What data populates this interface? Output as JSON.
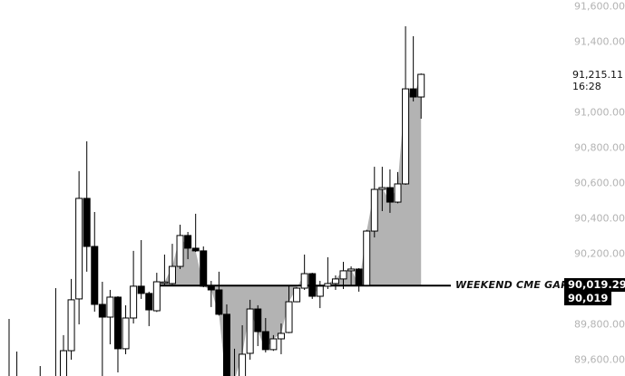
{
  "chart_data": {
    "type": "candlestick",
    "title": "",
    "xlabel": "",
    "ylabel": "",
    "ylim": [
      89380,
      91640
    ],
    "y_ticks": [
      "91,600.00",
      "91,400.00",
      "91,000.00",
      "90,800.00",
      "90,600.00",
      "90,400.00",
      "90,200.00",
      "89,800.00",
      "89,600.00"
    ],
    "y_tick_values": [
      91600,
      91400,
      91000,
      90800,
      90600,
      90400,
      90200,
      89800,
      89600
    ],
    "grid": false,
    "colors": {
      "up_body": "#ffffff",
      "down_body": "#000000",
      "wick": "#000000",
      "gap_fill": "#b3b3b3",
      "axis_text": "#b3b3b3"
    },
    "candles_ohlc": [
      [
        89450,
        89831,
        89420,
        89480
      ],
      [
        89450,
        89646,
        89420,
        89480
      ],
      null,
      null,
      [
        89450,
        89564,
        89420,
        89480
      ],
      null,
      [
        89450,
        90005,
        89420,
        89480
      ],
      [
        89450,
        89739,
        89420,
        89651
      ],
      [
        89651,
        90057,
        89600,
        89939
      ],
      [
        89944,
        90667,
        89800,
        90513
      ],
      [
        90513,
        90836,
        90098,
        90241
      ],
      [
        90241,
        90436,
        89872,
        89913
      ],
      [
        89913,
        90041,
        89440,
        89841
      ],
      [
        89841,
        89995,
        89687,
        89954
      ],
      [
        89954,
        89959,
        89528,
        89662
      ],
      [
        89662,
        89908,
        89631,
        89836
      ],
      [
        89836,
        90216,
        89805,
        90016
      ],
      [
        90016,
        90277,
        89944,
        89975
      ],
      [
        89975,
        89985,
        89790,
        89882
      ],
      [
        89877,
        90092,
        89870,
        90041
      ],
      [
        90035,
        90195,
        90021,
        90040
      ],
      [
        90031,
        90256,
        90025,
        90128
      ],
      [
        90128,
        90364,
        90113,
        90303
      ],
      [
        90303,
        90323,
        90169,
        90231
      ],
      [
        90231,
        90426,
        90210,
        90216
      ],
      [
        90216,
        90241,
        90010,
        90016
      ],
      [
        90016,
        90046,
        89898,
        89995
      ],
      [
        89995,
        90098,
        89850,
        89857
      ],
      [
        89857,
        89913,
        89420,
        89440
      ],
      [
        89430,
        89662,
        89420,
        89480
      ],
      [
        89440,
        89795,
        89420,
        89631
      ],
      [
        89636,
        89939,
        89600,
        89887
      ],
      [
        89887,
        89908,
        89677,
        89759
      ],
      [
        89759,
        89836,
        89641,
        89657
      ],
      [
        89657,
        89739,
        89650,
        89718
      ],
      [
        89718,
        89805,
        89631,
        89749
      ],
      [
        89754,
        90016,
        89750,
        89928
      ],
      [
        89928,
        90010,
        89925,
        90005
      ],
      [
        90005,
        90195,
        89995,
        90087
      ],
      [
        90087,
        90092,
        89944,
        89959
      ],
      [
        89959,
        90046,
        89892,
        90016
      ],
      [
        90016,
        90180,
        90000,
        90031
      ],
      [
        90031,
        90077,
        89995,
        90057
      ],
      [
        90057,
        90154,
        90000,
        90103
      ],
      [
        90103,
        90128,
        90021,
        90113
      ],
      [
        90113,
        90118,
        89985,
        90021
      ],
      [
        90021,
        90335,
        90015,
        90328
      ],
      [
        90328,
        90692,
        90292,
        90564
      ],
      [
        90564,
        90692,
        90441,
        90574
      ],
      [
        90574,
        90677,
        90431,
        90492
      ],
      [
        90492,
        90662,
        90485,
        90595
      ],
      [
        90595,
        91487,
        90590,
        91133
      ],
      [
        91133,
        91431,
        91062,
        91087
      ],
      [
        91087,
        91220,
        90964,
        91215.11
      ]
    ],
    "gap_fill_start_index": 19,
    "annotation": {
      "label": "WEEKEND CME GAP -",
      "level": 90019.29,
      "price_label": "90,019.29",
      "price_label_short": "90,019"
    },
    "current_price": {
      "label": "91,215.11",
      "countdown": "16:28",
      "value": 91215.11
    }
  }
}
